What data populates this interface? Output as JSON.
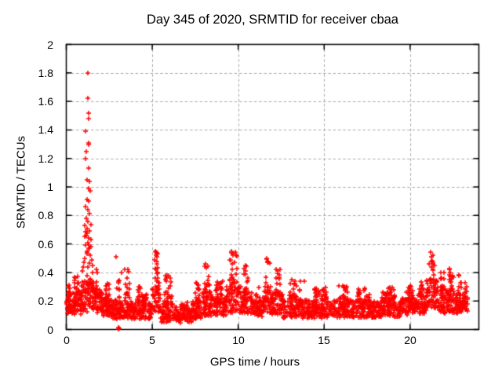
{
  "chart_data": {
    "type": "scatter",
    "title": "Day 345 of 2020, SRMTID for receiver cbaa",
    "xlabel": "GPS time / hours",
    "ylabel": "SRMTID / TECUs",
    "xlim": [
      0,
      24
    ],
    "ylim": [
      0,
      2
    ],
    "xticks": {
      "values": [
        0,
        5,
        10,
        15,
        20
      ],
      "labels": [
        "0",
        "5",
        "10",
        "15",
        "20"
      ]
    },
    "yticks": {
      "values": [
        0,
        0.2,
        0.4,
        0.6,
        0.8,
        1,
        1.2,
        1.4,
        1.6,
        1.8,
        2
      ],
      "labels": [
        "0",
        "0.2",
        "0.4",
        "0.6",
        "0.8",
        "1",
        "1.2",
        "1.4",
        "1.6",
        "1.8",
        "2"
      ]
    },
    "grid": {
      "show": true,
      "color": "#a9a9a9",
      "dash": [
        3.5,
        2.8
      ]
    },
    "axis_color": "#000000",
    "background": "#ffffff",
    "legend": "none",
    "marker": {
      "shape": "plus",
      "color": "#ff0000",
      "size": 7,
      "stroke": 1.5
    },
    "series_name": "SRMTID",
    "seed": 20201345,
    "outlier_points": [
      [
        1.26,
        1.8
      ],
      [
        1.25,
        1.62
      ],
      [
        1.28,
        1.52
      ],
      [
        1.28,
        1.48
      ],
      [
        1.14,
        1.39
      ],
      [
        1.28,
        1.31
      ],
      [
        1.31,
        1.3
      ],
      [
        1.16,
        1.25
      ],
      [
        1.11,
        1.2
      ],
      [
        1.28,
        1.13
      ],
      [
        1.22,
        1.05
      ],
      [
        1.34,
        1.04
      ],
      [
        1.28,
        0.99
      ],
      [
        1.37,
        0.97
      ],
      [
        1.19,
        0.91
      ],
      [
        1.3,
        0.9
      ],
      [
        1.12,
        0.86
      ],
      [
        1.25,
        0.84
      ],
      [
        1.33,
        0.81
      ],
      [
        1.18,
        0.78
      ],
      [
        1.27,
        0.76
      ],
      [
        1.08,
        0.73
      ],
      [
        1.22,
        0.71
      ],
      [
        1.35,
        0.69
      ],
      [
        1.15,
        0.66
      ],
      [
        1.29,
        0.64
      ],
      [
        1.24,
        0.61
      ],
      [
        1.1,
        0.59
      ],
      [
        1.32,
        0.57
      ],
      [
        1.2,
        0.55
      ],
      [
        1.4,
        0.52
      ],
      [
        1.05,
        0.5
      ],
      [
        1.45,
        0.63
      ],
      [
        1.42,
        0.58
      ],
      [
        1.02,
        0.47
      ],
      [
        1.48,
        0.49
      ],
      [
        0.98,
        0.44
      ],
      [
        1.52,
        0.45
      ],
      [
        0.93,
        0.41
      ],
      [
        1.55,
        0.4
      ],
      [
        0.65,
        0.37
      ],
      [
        1.75,
        0.42
      ],
      [
        1.8,
        0.4
      ],
      [
        2.9,
        0.51
      ],
      [
        3.2,
        0.4
      ],
      [
        3.42,
        0.42
      ],
      [
        3.04,
        0.004
      ],
      [
        3.05,
        0.012
      ],
      [
        3.06,
        0.008
      ],
      [
        5.18,
        0.55
      ],
      [
        5.22,
        0.52
      ],
      [
        5.12,
        0.49
      ],
      [
        5.25,
        0.46
      ],
      [
        5.95,
        0.38
      ],
      [
        7.55,
        0.33
      ],
      [
        8.1,
        0.46
      ],
      [
        8.15,
        0.43
      ],
      [
        9.62,
        0.55
      ],
      [
        9.68,
        0.52
      ],
      [
        9.55,
        0.49
      ],
      [
        9.8,
        0.47
      ],
      [
        10.42,
        0.45
      ],
      [
        11.68,
        0.5
      ],
      [
        11.72,
        0.47
      ],
      [
        12.2,
        0.42
      ],
      [
        13.85,
        0.34
      ],
      [
        16.3,
        0.3
      ],
      [
        21.18,
        0.54
      ],
      [
        21.22,
        0.51
      ],
      [
        21.3,
        0.48
      ],
      [
        21.1,
        0.46
      ],
      [
        21.4,
        0.45
      ],
      [
        22.3,
        0.42
      ],
      [
        22.35,
        0.4
      ],
      [
        22.85,
        0.38
      ]
    ],
    "band_segments": [
      [
        0.0,
        0.3,
        40,
        0.09,
        0.25,
        0.31
      ],
      [
        0.3,
        0.9,
        70,
        0.09,
        0.27,
        0.38
      ],
      [
        0.9,
        1.6,
        90,
        0.1,
        0.35,
        0.75
      ],
      [
        1.6,
        2.1,
        60,
        0.1,
        0.28,
        0.42
      ],
      [
        2.1,
        2.7,
        70,
        0.08,
        0.22,
        0.33
      ],
      [
        2.7,
        3.3,
        70,
        0.06,
        0.2,
        0.4
      ],
      [
        3.3,
        3.8,
        55,
        0.07,
        0.22,
        0.42
      ],
      [
        3.8,
        5.0,
        130,
        0.06,
        0.2,
        0.3
      ],
      [
        5.0,
        5.45,
        60,
        0.1,
        0.35,
        0.56
      ],
      [
        5.45,
        6.4,
        100,
        0.04,
        0.18,
        0.38
      ],
      [
        6.4,
        7.3,
        90,
        0.04,
        0.14,
        0.22
      ],
      [
        7.3,
        7.9,
        65,
        0.06,
        0.2,
        0.33
      ],
      [
        7.9,
        8.5,
        70,
        0.08,
        0.26,
        0.47
      ],
      [
        8.5,
        9.3,
        85,
        0.08,
        0.22,
        0.34
      ],
      [
        9.3,
        10.15,
        95,
        0.1,
        0.3,
        0.56
      ],
      [
        10.15,
        10.8,
        70,
        0.1,
        0.26,
        0.45
      ],
      [
        10.8,
        11.4,
        65,
        0.08,
        0.2,
        0.32
      ],
      [
        11.4,
        12.05,
        70,
        0.09,
        0.27,
        0.5
      ],
      [
        12.05,
        12.6,
        60,
        0.09,
        0.25,
        0.43
      ],
      [
        12.6,
        14.0,
        140,
        0.07,
        0.21,
        0.35
      ],
      [
        14.0,
        15.6,
        160,
        0.07,
        0.2,
        0.3
      ],
      [
        15.6,
        16.6,
        100,
        0.07,
        0.21,
        0.31
      ],
      [
        16.6,
        18.0,
        140,
        0.07,
        0.2,
        0.29
      ],
      [
        18.0,
        19.5,
        150,
        0.08,
        0.2,
        0.3
      ],
      [
        19.5,
        20.4,
        90,
        0.09,
        0.22,
        0.32
      ],
      [
        20.4,
        20.95,
        60,
        0.1,
        0.24,
        0.35
      ],
      [
        20.95,
        21.65,
        80,
        0.12,
        0.35,
        0.55
      ],
      [
        21.65,
        22.1,
        55,
        0.1,
        0.28,
        0.4
      ],
      [
        22.1,
        22.65,
        60,
        0.1,
        0.28,
        0.43
      ],
      [
        22.65,
        23.1,
        55,
        0.1,
        0.26,
        0.4
      ],
      [
        23.1,
        23.35,
        30,
        0.12,
        0.25,
        0.33
      ]
    ]
  }
}
